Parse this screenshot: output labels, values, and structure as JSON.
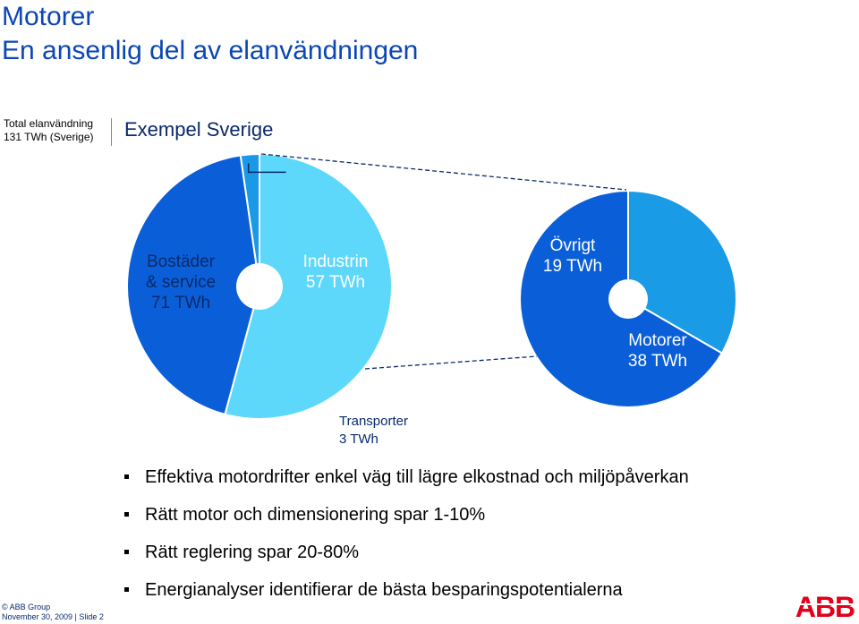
{
  "slide": {
    "title_line1": "Motorer",
    "title_line2": "En ansenlig del av elanvändningen",
    "side_label_line1": "Total elanvändning",
    "side_label_line2": "131 TWh (Sverige)",
    "subtitle": "Exempel Sverige"
  },
  "chart_data": [
    {
      "type": "pie",
      "title": "Total elanvändning 131 TWh (Sverige)",
      "unit": "TWh",
      "slices": [
        {
          "label_lines": [
            "Bostäder",
            "& service",
            "71 TWh"
          ],
          "name": "Bostäder & service",
          "value": 71,
          "color": "#5dd8fb",
          "label_color": "#0a2a6b"
        },
        {
          "label_lines": [
            "Industrin",
            "57 TWh"
          ],
          "name": "Industrin",
          "value": 57,
          "color": "#0a5fd8",
          "label_color": "#ffffff"
        },
        {
          "label_lines": [
            "Transporter",
            "3 TWh"
          ],
          "name": "Transporter",
          "value": 3,
          "color": "#1a99e6",
          "label_color": "#0a2a6b"
        }
      ]
    },
    {
      "type": "pie",
      "title": "Industrin 57 TWh",
      "unit": "TWh",
      "slices": [
        {
          "label_lines": [
            "Övrigt",
            "19 TWh"
          ],
          "name": "Övrigt",
          "value": 19,
          "color": "#1a9be6",
          "label_color": "#ffffff"
        },
        {
          "label_lines": [
            "Motorer",
            "38 TWh"
          ],
          "name": "Motorer",
          "value": 38,
          "color": "#0a5fd8",
          "label_color": "#ffffff"
        }
      ]
    }
  ],
  "bullets": [
    "Effektiva motordrifter enkel väg till lägre elkostnad och miljöpåverkan",
    "Rätt motor och dimensionering spar 1-10%",
    "Rätt reglering spar 20-80%",
    "Energianalyser identifierar de bästa besparingspotentialerna"
  ],
  "footer": {
    "line1": "© ABB Group",
    "line2": "November 30, 2009 | Slide 2"
  },
  "logo": {
    "text": "ABB",
    "color": "#e2001a"
  }
}
